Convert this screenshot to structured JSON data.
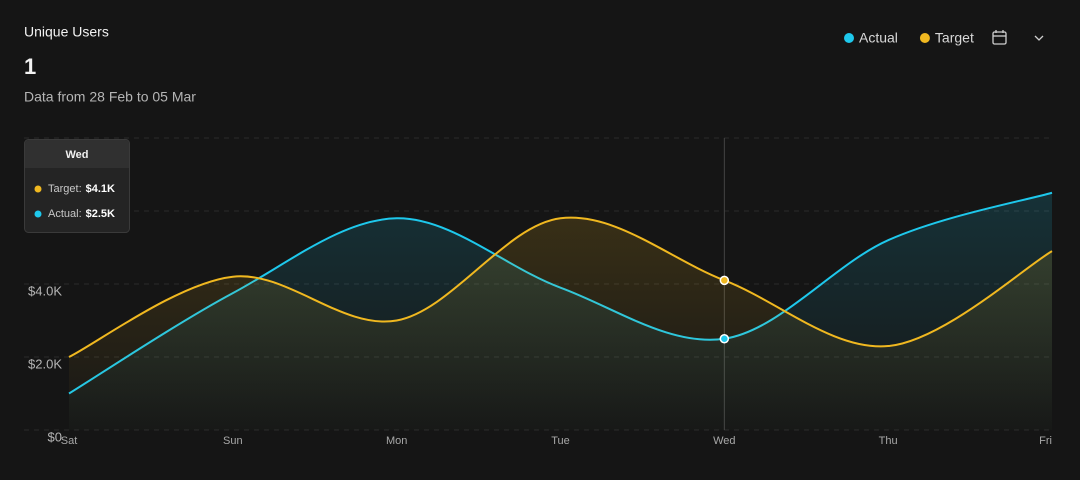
{
  "chart_data": {
    "type": "line",
    "title": "Unique Users",
    "headline": "1",
    "subtitle": "Data from 28 Feb to 05 Mar",
    "categories": [
      "Sat",
      "Sun",
      "Mon",
      "Tue",
      "Wed",
      "Thu",
      "Fri"
    ],
    "series": [
      {
        "name": "Actual",
        "color": "#1ec8ec",
        "values": [
          1000,
          3750,
          5800,
          3900,
          2500,
          5200,
          6500
        ]
      },
      {
        "name": "Target",
        "color": "#f0b820",
        "values": [
          2000,
          4200,
          3000,
          5800,
          4100,
          2300,
          4900
        ]
      }
    ],
    "ylim": [
      0,
      8000
    ],
    "yticks": [
      {
        "value": 0,
        "label": "$0"
      },
      {
        "value": 2000,
        "label": "$2.0K"
      },
      {
        "value": 4000,
        "label": "$4.0K"
      },
      {
        "value": 6000,
        "label": null
      },
      {
        "value": 8000,
        "label": null
      }
    ],
    "grid": true,
    "tooltip": {
      "category": 4,
      "title": "Wed",
      "items": [
        {
          "series": 1,
          "name": "Target:",
          "value_label": "$4.1K"
        },
        {
          "series": 0,
          "name": "Actual:",
          "value_label": "$2.5K"
        }
      ]
    }
  }
}
